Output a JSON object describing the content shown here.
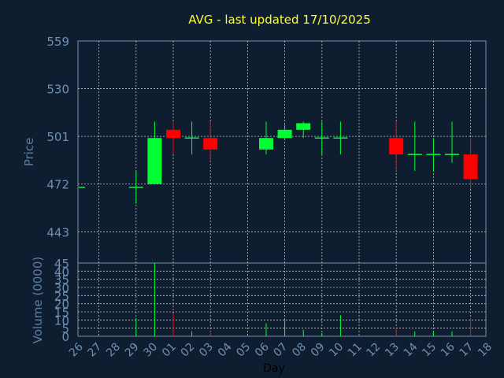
{
  "chart_data": {
    "type": "candlestick",
    "title": "AVG - last updated 17/10/2025",
    "ylabel": "Price",
    "volume_label": "Volume (0000)",
    "xlabel": "Day",
    "colors": {
      "up": "#00ff33",
      "down": "#ff0000",
      "background": "#0e1e30",
      "axis": "#7f8faf",
      "grid": "#c0c0c0"
    },
    "price_ylim": [
      424,
      559
    ],
    "price_ticks": [
      559,
      530,
      501,
      472,
      443
    ],
    "volume_ylim": [
      0,
      45
    ],
    "volume_ticks": [
      0,
      5,
      10,
      15,
      20,
      25,
      30,
      35,
      40,
      45
    ],
    "x_labels": [
      "26",
      "27",
      "28",
      "29",
      "30",
      "01",
      "02",
      "03",
      "04",
      "05",
      "06",
      "07",
      "08",
      "09",
      "10",
      "11",
      "12",
      "13",
      "14",
      "15",
      "16",
      "17",
      "18"
    ],
    "candles": [
      {
        "x": "26",
        "open": 470,
        "high": 470,
        "low": 470,
        "close": 470,
        "volume": 0
      },
      {
        "x": "29",
        "open": 470,
        "high": 480,
        "low": 460,
        "close": 470,
        "volume": 11
      },
      {
        "x": "30",
        "open": 472,
        "high": 510,
        "low": 472,
        "close": 500,
        "volume": 45
      },
      {
        "x": "01",
        "open": 505,
        "high": 510,
        "low": 490,
        "close": 500,
        "volume": 14
      },
      {
        "x": "02",
        "open": 500,
        "high": 510,
        "low": 490,
        "close": 500,
        "volume": 3
      },
      {
        "x": "03",
        "open": 500,
        "high": 510,
        "low": 486,
        "close": 493,
        "volume": 3
      },
      {
        "x": "06",
        "open": 493,
        "high": 510,
        "low": 490,
        "close": 500,
        "volume": 8
      },
      {
        "x": "07",
        "open": 500,
        "high": 508,
        "low": 499,
        "close": 505,
        "volume": 10
      },
      {
        "x": "08",
        "open": 505,
        "high": 510,
        "low": 500,
        "close": 509,
        "volume": 4
      },
      {
        "x": "09",
        "open": 500,
        "high": 510,
        "low": 490,
        "close": 500,
        "volume": 2
      },
      {
        "x": "10",
        "open": 500,
        "high": 510,
        "low": 490,
        "close": 500,
        "volume": 13
      },
      {
        "x": "13",
        "open": 500,
        "high": 510,
        "low": 480,
        "close": 490,
        "volume": 5
      },
      {
        "x": "14",
        "open": 490,
        "high": 510,
        "low": 480,
        "close": 490,
        "volume": 3
      },
      {
        "x": "15",
        "open": 490,
        "high": 500,
        "low": 480,
        "close": 490,
        "volume": 3
      },
      {
        "x": "16",
        "open": 490,
        "high": 510,
        "low": 485,
        "close": 490,
        "volume": 3
      },
      {
        "x": "17",
        "open": 490,
        "high": 500,
        "low": 469,
        "close": 475,
        "volume": 11
      }
    ]
  }
}
